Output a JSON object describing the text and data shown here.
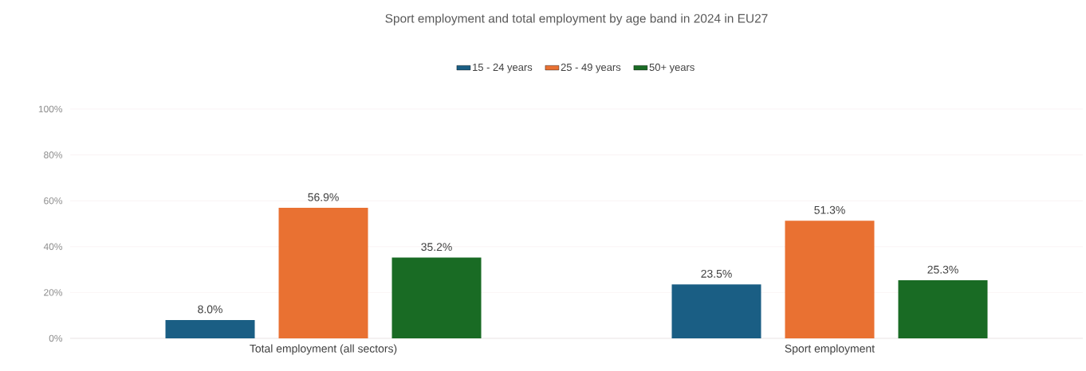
{
  "chart_data": {
    "type": "bar",
    "title": "Sport employment and total employment by age band in 2024 in EU27",
    "categories": [
      "Total employment (all sectors)",
      "Sport employment"
    ],
    "series": [
      {
        "name": "15 - 24 years",
        "color": "#1a5e84",
        "values": [
          8.0,
          23.5
        ],
        "value_labels": [
          "8.0%",
          "23.5%"
        ]
      },
      {
        "name": "25 - 49 years",
        "color": "#e97132",
        "values": [
          56.9,
          51.3
        ],
        "value_labels": [
          "56.9%",
          "51.3%"
        ]
      },
      {
        "name": "50+ years",
        "color": "#196b24",
        "values": [
          35.2,
          25.3
        ],
        "value_labels": [
          "35.2%",
          "25.3%"
        ]
      }
    ],
    "ylim": [
      0,
      100
    ],
    "yticks": [
      {
        "value": 0,
        "label": "0%"
      },
      {
        "value": 20,
        "label": "20%"
      },
      {
        "value": 40,
        "label": "40%"
      },
      {
        "value": 60,
        "label": "60%"
      },
      {
        "value": 80,
        "label": "80%"
      },
      {
        "value": 100,
        "label": "100%"
      }
    ],
    "grid": "y",
    "legend": "top"
  }
}
